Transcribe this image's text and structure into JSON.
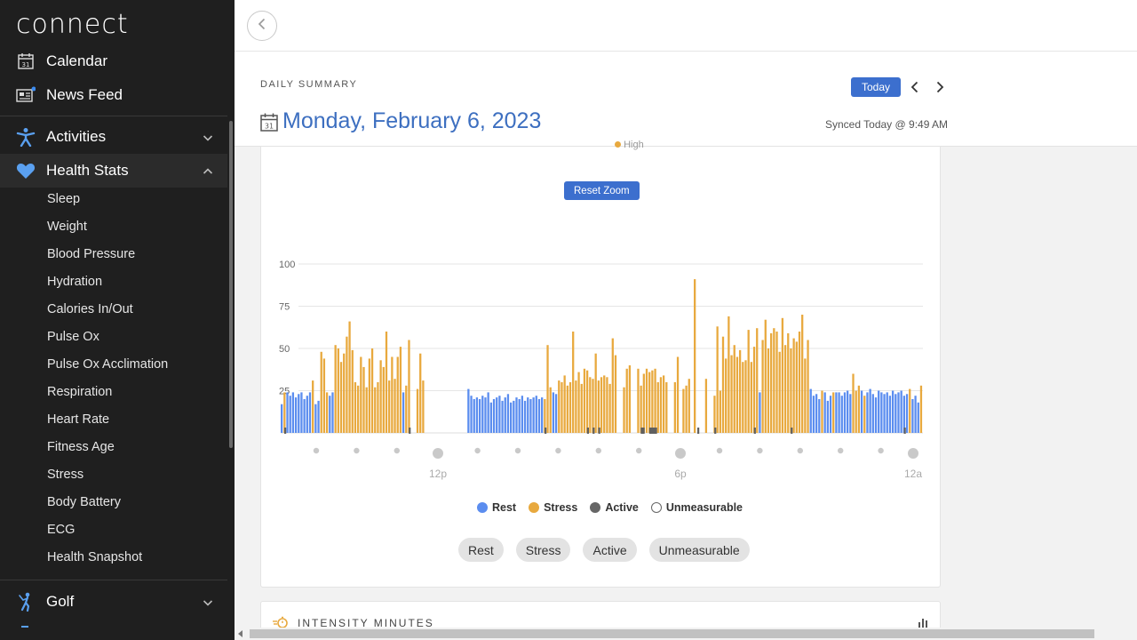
{
  "sidebar": {
    "logo": "connect",
    "top_items": [
      {
        "label": "Calendar",
        "icon": "calendar-icon"
      },
      {
        "label": "News Feed",
        "icon": "news-feed-icon"
      }
    ],
    "sections": [
      {
        "label": "Activities",
        "icon": "activity-person-icon",
        "expanded": false
      },
      {
        "label": "Health Stats",
        "icon": "heart-icon",
        "expanded": true
      },
      {
        "label": "Golf",
        "icon": "golfer-icon",
        "expanded": false
      }
    ],
    "health_stats_items": [
      "Sleep",
      "Weight",
      "Blood Pressure",
      "Hydration",
      "Calories In/Out",
      "Pulse Ox",
      "Pulse Ox Acclimation",
      "Respiration",
      "Heart Rate",
      "Fitness Age",
      "Stress",
      "Body Battery",
      "ECG",
      "Health Snapshot"
    ],
    "accent_color": "#5aa0f0",
    "notification_color": "#3c8cf0"
  },
  "header": {
    "daily_label": "DAILY SUMMARY",
    "date": "Monday, February 6, 2023",
    "today_button": "Today",
    "synced": "Synced Today @ 9:49 AM"
  },
  "stress_card": {
    "partial_legend": "High",
    "reset_zoom": "Reset Zoom",
    "legend": [
      {
        "label": "Rest",
        "color": "#5b8def"
      },
      {
        "label": "Stress",
        "color": "#e8a93e"
      },
      {
        "label": "Active",
        "color": "#666666"
      },
      {
        "label": "Unmeasurable",
        "color": "#ffffff"
      }
    ],
    "filters": [
      "Rest",
      "Stress",
      "Active",
      "Unmeasurable"
    ]
  },
  "chart_data": {
    "type": "bar",
    "title": "",
    "xlabel": "",
    "ylabel": "",
    "ylim": [
      0,
      100
    ],
    "yticks": [
      100,
      75,
      50,
      25
    ],
    "xticks": [
      "12p",
      "6p",
      "12a"
    ],
    "grid": true,
    "colors": {
      "rest": "#5b8def",
      "stress": "#e8a93e",
      "active": "#606060"
    },
    "rest": [
      [
        0,
        17
      ],
      [
        2,
        24
      ],
      [
        3,
        22
      ],
      [
        4,
        24
      ],
      [
        5,
        21
      ],
      [
        6,
        23
      ],
      [
        7,
        24
      ],
      [
        8,
        20
      ],
      [
        9,
        22
      ],
      [
        10,
        24
      ],
      [
        12,
        17
      ],
      [
        13,
        19
      ],
      [
        17,
        22
      ],
      [
        18,
        24
      ],
      [
        43,
        24
      ],
      [
        66,
        26
      ],
      [
        67,
        22
      ],
      [
        68,
        20
      ],
      [
        69,
        21
      ],
      [
        70,
        20
      ],
      [
        71,
        22
      ],
      [
        72,
        21
      ],
      [
        73,
        24
      ],
      [
        74,
        18
      ],
      [
        75,
        20
      ],
      [
        76,
        21
      ],
      [
        77,
        22
      ],
      [
        78,
        19
      ],
      [
        79,
        21
      ],
      [
        80,
        23
      ],
      [
        81,
        18
      ],
      [
        82,
        19
      ],
      [
        83,
        21
      ],
      [
        84,
        20
      ],
      [
        85,
        22
      ],
      [
        86,
        19
      ],
      [
        87,
        21
      ],
      [
        88,
        20
      ],
      [
        89,
        21
      ],
      [
        90,
        22
      ],
      [
        91,
        20
      ],
      [
        92,
        21
      ],
      [
        96,
        24
      ],
      [
        97,
        23
      ],
      [
        169,
        24
      ],
      [
        187,
        26
      ],
      [
        188,
        22
      ],
      [
        189,
        23
      ],
      [
        190,
        20
      ],
      [
        192,
        24
      ],
      [
        193,
        19
      ],
      [
        194,
        22
      ],
      [
        196,
        24
      ],
      [
        197,
        24
      ],
      [
        198,
        22
      ],
      [
        199,
        24
      ],
      [
        200,
        25
      ],
      [
        201,
        23
      ],
      [
        205,
        25
      ],
      [
        207,
        24
      ],
      [
        208,
        26
      ],
      [
        209,
        23
      ],
      [
        210,
        21
      ],
      [
        211,
        25
      ],
      [
        212,
        24
      ],
      [
        213,
        23
      ],
      [
        214,
        24
      ],
      [
        215,
        22
      ],
      [
        216,
        25
      ],
      [
        217,
        23
      ],
      [
        218,
        24
      ],
      [
        219,
        25
      ],
      [
        220,
        22
      ],
      [
        221,
        23
      ],
      [
        223,
        20
      ],
      [
        224,
        22
      ],
      [
        225,
        18
      ]
    ],
    "stress": [
      [
        1,
        24
      ],
      [
        11,
        31
      ],
      [
        14,
        48
      ],
      [
        15,
        44
      ],
      [
        16,
        24
      ],
      [
        19,
        52
      ],
      [
        20,
        50
      ],
      [
        21,
        42
      ],
      [
        22,
        47
      ],
      [
        23,
        57
      ],
      [
        24,
        66
      ],
      [
        25,
        49
      ],
      [
        26,
        30
      ],
      [
        27,
        28
      ],
      [
        28,
        45
      ],
      [
        29,
        39
      ],
      [
        30,
        27
      ],
      [
        31,
        44
      ],
      [
        32,
        50
      ],
      [
        33,
        27
      ],
      [
        34,
        30
      ],
      [
        35,
        43
      ],
      [
        36,
        39
      ],
      [
        37,
        60
      ],
      [
        38,
        31
      ],
      [
        39,
        45
      ],
      [
        40,
        32
      ],
      [
        41,
        45
      ],
      [
        42,
        51
      ],
      [
        44,
        28
      ],
      [
        45,
        55
      ],
      [
        48,
        26
      ],
      [
        49,
        47
      ],
      [
        50,
        31
      ],
      [
        93,
        20
      ],
      [
        94,
        52
      ],
      [
        95,
        27
      ],
      [
        98,
        31
      ],
      [
        99,
        30
      ],
      [
        100,
        34
      ],
      [
        101,
        28
      ],
      [
        102,
        30
      ],
      [
        103,
        60
      ],
      [
        104,
        31
      ],
      [
        105,
        36
      ],
      [
        106,
        29
      ],
      [
        107,
        38
      ],
      [
        108,
        37
      ],
      [
        109,
        33
      ],
      [
        110,
        32
      ],
      [
        111,
        47
      ],
      [
        112,
        31
      ],
      [
        113,
        33
      ],
      [
        114,
        34
      ],
      [
        115,
        33
      ],
      [
        116,
        29
      ],
      [
        117,
        56
      ],
      [
        118,
        46
      ],
      [
        121,
        27
      ],
      [
        122,
        38
      ],
      [
        123,
        40
      ],
      [
        126,
        38
      ],
      [
        127,
        28
      ],
      [
        128,
        35
      ],
      [
        129,
        38
      ],
      [
        130,
        36
      ],
      [
        131,
        37
      ],
      [
        132,
        38
      ],
      [
        133,
        30
      ],
      [
        134,
        33
      ],
      [
        135,
        34
      ],
      [
        136,
        30
      ],
      [
        139,
        30
      ],
      [
        140,
        45
      ],
      [
        142,
        26
      ],
      [
        143,
        28
      ],
      [
        144,
        32
      ],
      [
        146,
        91
      ],
      [
        150,
        32
      ],
      [
        153,
        22
      ],
      [
        154,
        63
      ],
      [
        155,
        25
      ],
      [
        156,
        57
      ],
      [
        157,
        44
      ],
      [
        158,
        69
      ],
      [
        159,
        46
      ],
      [
        160,
        52
      ],
      [
        161,
        45
      ],
      [
        162,
        49
      ],
      [
        163,
        42
      ],
      [
        164,
        43
      ],
      [
        165,
        61
      ],
      [
        166,
        42
      ],
      [
        167,
        51
      ],
      [
        168,
        62
      ],
      [
        170,
        55
      ],
      [
        171,
        67
      ],
      [
        172,
        50
      ],
      [
        173,
        59
      ],
      [
        174,
        62
      ],
      [
        175,
        60
      ],
      [
        176,
        48
      ],
      [
        177,
        68
      ],
      [
        178,
        52
      ],
      [
        179,
        59
      ],
      [
        180,
        50
      ],
      [
        181,
        56
      ],
      [
        182,
        54
      ],
      [
        183,
        60
      ],
      [
        184,
        70
      ],
      [
        185,
        44
      ],
      [
        186,
        55
      ],
      [
        191,
        25
      ],
      [
        195,
        24
      ],
      [
        202,
        35
      ],
      [
        203,
        25
      ],
      [
        204,
        28
      ],
      [
        206,
        22
      ],
      [
        222,
        26
      ],
      [
        226,
        28
      ]
    ]
  },
  "intensity_card": {
    "title": "INTENSITY MINUTES"
  }
}
